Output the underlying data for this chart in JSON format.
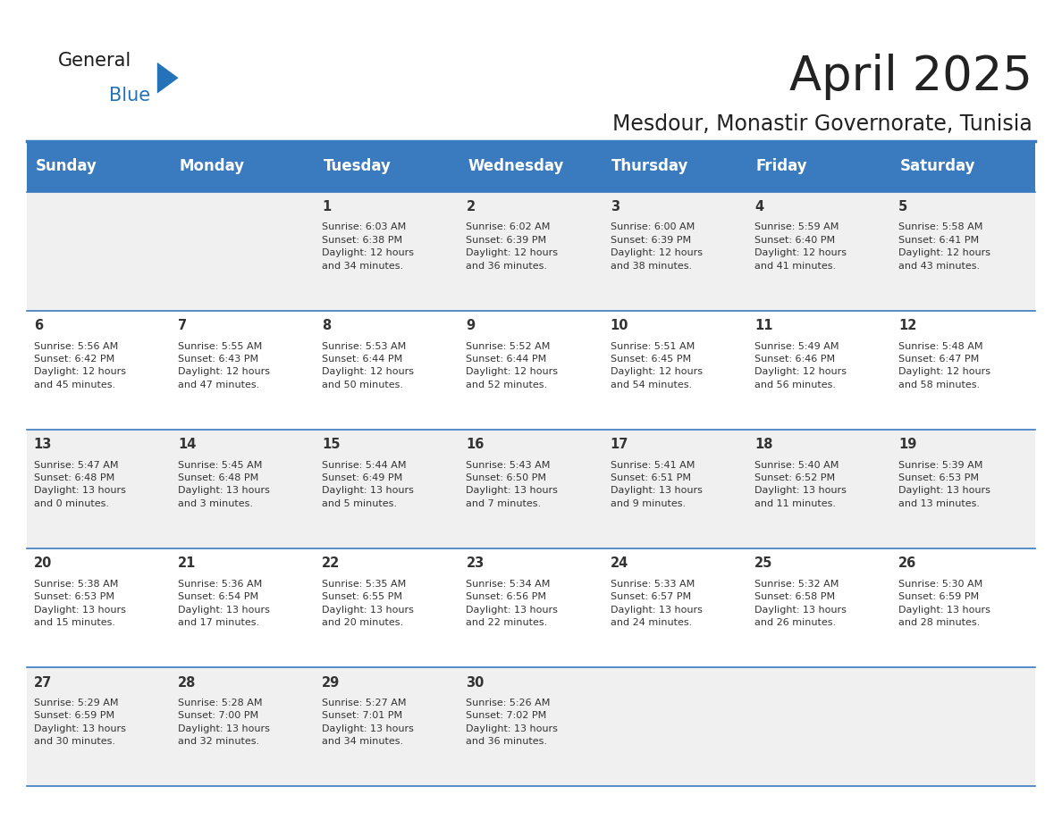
{
  "title": "April 2025",
  "subtitle": "Mesdour, Monastir Governorate, Tunisia",
  "days_of_week": [
    "Sunday",
    "Monday",
    "Tuesday",
    "Wednesday",
    "Thursday",
    "Friday",
    "Saturday"
  ],
  "header_bg": "#3a7abf",
  "header_text": "#ffffff",
  "row_bg_odd": "#f0f0f0",
  "row_bg_even": "#ffffff",
  "border_color": "#3a7abf",
  "text_color": "#333333",
  "cell_data": [
    [
      "",
      "",
      "1\nSunrise: 6:03 AM\nSunset: 6:38 PM\nDaylight: 12 hours\nand 34 minutes.",
      "2\nSunrise: 6:02 AM\nSunset: 6:39 PM\nDaylight: 12 hours\nand 36 minutes.",
      "3\nSunrise: 6:00 AM\nSunset: 6:39 PM\nDaylight: 12 hours\nand 38 minutes.",
      "4\nSunrise: 5:59 AM\nSunset: 6:40 PM\nDaylight: 12 hours\nand 41 minutes.",
      "5\nSunrise: 5:58 AM\nSunset: 6:41 PM\nDaylight: 12 hours\nand 43 minutes."
    ],
    [
      "6\nSunrise: 5:56 AM\nSunset: 6:42 PM\nDaylight: 12 hours\nand 45 minutes.",
      "7\nSunrise: 5:55 AM\nSunset: 6:43 PM\nDaylight: 12 hours\nand 47 minutes.",
      "8\nSunrise: 5:53 AM\nSunset: 6:44 PM\nDaylight: 12 hours\nand 50 minutes.",
      "9\nSunrise: 5:52 AM\nSunset: 6:44 PM\nDaylight: 12 hours\nand 52 minutes.",
      "10\nSunrise: 5:51 AM\nSunset: 6:45 PM\nDaylight: 12 hours\nand 54 minutes.",
      "11\nSunrise: 5:49 AM\nSunset: 6:46 PM\nDaylight: 12 hours\nand 56 minutes.",
      "12\nSunrise: 5:48 AM\nSunset: 6:47 PM\nDaylight: 12 hours\nand 58 minutes."
    ],
    [
      "13\nSunrise: 5:47 AM\nSunset: 6:48 PM\nDaylight: 13 hours\nand 0 minutes.",
      "14\nSunrise: 5:45 AM\nSunset: 6:48 PM\nDaylight: 13 hours\nand 3 minutes.",
      "15\nSunrise: 5:44 AM\nSunset: 6:49 PM\nDaylight: 13 hours\nand 5 minutes.",
      "16\nSunrise: 5:43 AM\nSunset: 6:50 PM\nDaylight: 13 hours\nand 7 minutes.",
      "17\nSunrise: 5:41 AM\nSunset: 6:51 PM\nDaylight: 13 hours\nand 9 minutes.",
      "18\nSunrise: 5:40 AM\nSunset: 6:52 PM\nDaylight: 13 hours\nand 11 minutes.",
      "19\nSunrise: 5:39 AM\nSunset: 6:53 PM\nDaylight: 13 hours\nand 13 minutes."
    ],
    [
      "20\nSunrise: 5:38 AM\nSunset: 6:53 PM\nDaylight: 13 hours\nand 15 minutes.",
      "21\nSunrise: 5:36 AM\nSunset: 6:54 PM\nDaylight: 13 hours\nand 17 minutes.",
      "22\nSunrise: 5:35 AM\nSunset: 6:55 PM\nDaylight: 13 hours\nand 20 minutes.",
      "23\nSunrise: 5:34 AM\nSunset: 6:56 PM\nDaylight: 13 hours\nand 22 minutes.",
      "24\nSunrise: 5:33 AM\nSunset: 6:57 PM\nDaylight: 13 hours\nand 24 minutes.",
      "25\nSunrise: 5:32 AM\nSunset: 6:58 PM\nDaylight: 13 hours\nand 26 minutes.",
      "26\nSunrise: 5:30 AM\nSunset: 6:59 PM\nDaylight: 13 hours\nand 28 minutes."
    ],
    [
      "27\nSunrise: 5:29 AM\nSunset: 6:59 PM\nDaylight: 13 hours\nand 30 minutes.",
      "28\nSunrise: 5:28 AM\nSunset: 7:00 PM\nDaylight: 13 hours\nand 32 minutes.",
      "29\nSunrise: 5:27 AM\nSunset: 7:01 PM\nDaylight: 13 hours\nand 34 minutes.",
      "30\nSunrise: 5:26 AM\nSunset: 7:02 PM\nDaylight: 13 hours\nand 36 minutes.",
      "",
      "",
      ""
    ]
  ],
  "logo_color_general": "#1a1a1a",
  "logo_color_blue": "#2472b8",
  "title_fontsize": 38,
  "subtitle_fontsize": 17,
  "header_fontsize": 12,
  "cell_day_fontsize": 10.5,
  "cell_info_fontsize": 8.0
}
